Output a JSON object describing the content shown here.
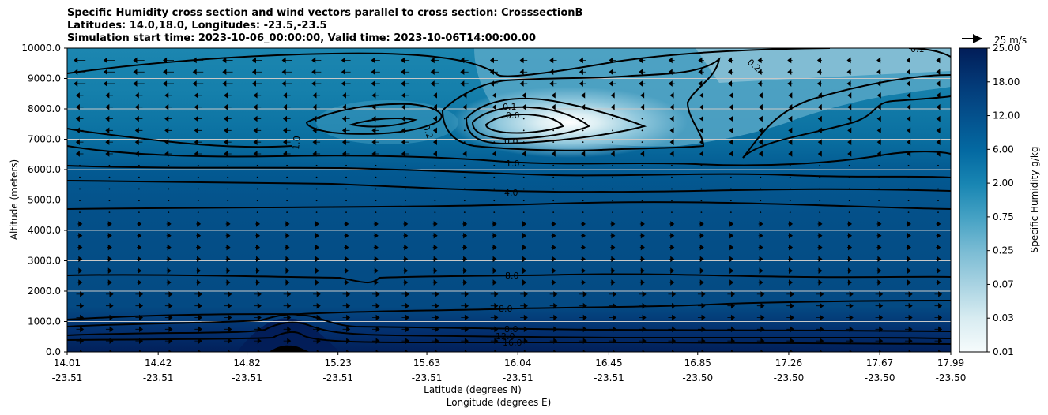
{
  "chart_data": {
    "type": "heatmap",
    "title_lines": [
      "Specific Humidity cross section and wind vectors parallel to cross section: CrosssectionB",
      "Latitudes: 14.0,18.0, Longitudes: -23.5,-23.5",
      "Simulation start time: 2023-10-06_00:00:00, Valid time: 2023-10-06T14:00:00.00"
    ],
    "ylabel": "Altitude (meters)",
    "xlabel_lat": "Latitude (degrees N)",
    "xlabel_lon": "Longitude (degrees E)",
    "ylim": [
      0,
      10000
    ],
    "yticks": [
      "0.0",
      "1000.0",
      "2000.0",
      "3000.0",
      "4000.0",
      "5000.0",
      "6000.0",
      "7000.0",
      "8000.0",
      "9000.0",
      "10000.0"
    ],
    "xticks_lat": [
      "14.01",
      "14.42",
      "14.82",
      "15.23",
      "15.63",
      "16.04",
      "16.45",
      "16.85",
      "17.26",
      "17.67",
      "17.99"
    ],
    "xticks_lon": [
      "-23.51",
      "-23.51",
      "-23.51",
      "-23.51",
      "-23.51",
      "-23.51",
      "-23.51",
      "-23.50",
      "-23.50",
      "-23.50",
      "-23.50"
    ],
    "colorbar_label": "Specific Humidity g/kg",
    "colorbar_ticks": [
      "0.01",
      "0.03",
      "0.07",
      "0.25",
      "0.75",
      "2.00",
      "6.00",
      "12.00",
      "18.00",
      "25.00"
    ],
    "vector_key_label": "25 m/s",
    "contour_labels": [
      "0.1",
      "0.2",
      "1.0",
      "0.1",
      "0.0",
      "0.0",
      "0.2",
      "1.0",
      "4.0",
      "8.0",
      "8.0",
      "8.0",
      "12.0",
      "16.0"
    ],
    "contour_levels": [
      0.0,
      0.1,
      0.2,
      1.0,
      4.0,
      8.0,
      12.0,
      16.0
    ],
    "humidity_profile": [
      {
        "altitude": 0,
        "value": 18
      },
      {
        "altitude": 500,
        "value": 14
      },
      {
        "altitude": 1000,
        "value": 11
      },
      {
        "altitude": 2000,
        "value": 9
      },
      {
        "altitude": 3000,
        "value": 7
      },
      {
        "altitude": 4500,
        "value": 5
      },
      {
        "altitude": 5500,
        "value": 3.5
      },
      {
        "altitude": 6500,
        "value": 1.2
      },
      {
        "altitude": 7500,
        "value": 0.5
      },
      {
        "altitude": 9000,
        "value": 0.3
      },
      {
        "altitude": 10000,
        "value": 0.15
      }
    ],
    "dry_pocket": {
      "latitude": 16.1,
      "altitude": 7400,
      "value": 0.01
    },
    "wind": {
      "upper_direction": "toward lower latitude",
      "lower_direction": "toward higher latitude",
      "reference_speed_ms": 25
    }
  }
}
